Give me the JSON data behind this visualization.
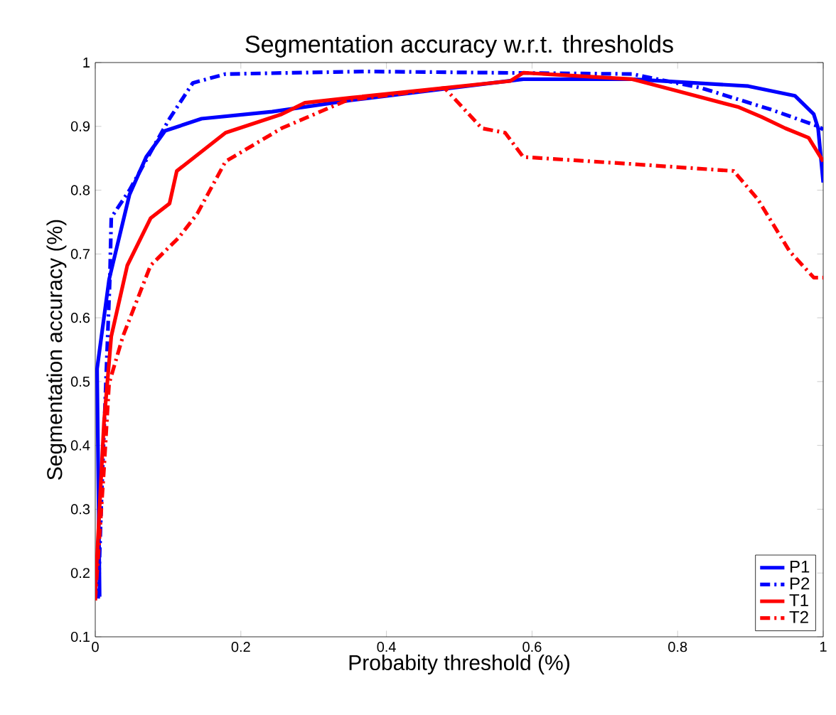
{
  "chart_data": {
    "type": "line",
    "title": "Segmentation accuracy w.r.t. thresholds",
    "xlabel": "Probabity threshold (%)",
    "ylabel": "Segmentation accuracy (%)",
    "xlim": [
      0,
      1
    ],
    "ylim": [
      0.1,
      1
    ],
    "xticks": [
      0,
      0.2,
      0.4,
      0.6,
      0.8,
      1
    ],
    "yticks": [
      0.1,
      0.2,
      0.3,
      0.4,
      0.5,
      0.6,
      0.7,
      0.8,
      0.9,
      1
    ],
    "legend": "bottom right",
    "grid": false,
    "marker": "none",
    "series": [
      {
        "name": "P1",
        "color": "#0000ff",
        "line_style": "solid",
        "x": [
          0.006,
          0.0025,
          0.019,
          0.047,
          0.07,
          0.096,
          0.146,
          0.243,
          0.352,
          0.588,
          0.737,
          0.897,
          0.961,
          0.987,
          0.993,
          1.0
        ],
        "values": [
          0.163,
          0.52,
          0.66,
          0.793,
          0.852,
          0.893,
          0.912,
          0.923,
          0.941,
          0.974,
          0.974,
          0.963,
          0.948,
          0.919,
          0.897,
          0.812
        ]
      },
      {
        "name": "P2",
        "color": "#0000ff",
        "line_style": "dashed",
        "x": [
          0.004,
          0.009,
          0.02,
          0.022,
          0.047,
          0.083,
          0.102,
          0.134,
          0.179,
          0.371,
          0.737,
          0.833,
          0.929,
          0.993,
          1.0
        ],
        "values": [
          0.16,
          0.33,
          0.66,
          0.757,
          0.8,
          0.874,
          0.912,
          0.968,
          0.982,
          0.986,
          0.982,
          0.96,
          0.926,
          0.9,
          0.895
        ]
      },
      {
        "name": "T1",
        "color": "#ff0000",
        "line_style": "solid",
        "x": [
          0,
          0.012,
          0.022,
          0.044,
          0.076,
          0.102,
          0.112,
          0.179,
          0.256,
          0.288,
          0.352,
          0.57,
          0.588,
          0.737,
          0.794,
          0.884,
          0.915,
          0.948,
          0.98,
          1.0
        ],
        "values": [
          0.171,
          0.437,
          0.571,
          0.682,
          0.756,
          0.779,
          0.83,
          0.89,
          0.919,
          0.937,
          0.945,
          0.971,
          0.984,
          0.974,
          0.957,
          0.93,
          0.915,
          0.897,
          0.882,
          0.845
        ]
      },
      {
        "name": "T2",
        "color": "#ff0000",
        "line_style": "dashed",
        "x": [
          0,
          0.012,
          0.019,
          0.038,
          0.076,
          0.115,
          0.14,
          0.179,
          0.256,
          0.346,
          0.48,
          0.531,
          0.563,
          0.588,
          0.737,
          0.877,
          0.91,
          0.954,
          0.987,
          1.0
        ],
        "values": [
          0.157,
          0.363,
          0.497,
          0.571,
          0.682,
          0.726,
          0.763,
          0.845,
          0.897,
          0.941,
          0.96,
          0.897,
          0.89,
          0.852,
          0.841,
          0.83,
          0.786,
          0.704,
          0.663,
          0.663
        ]
      }
    ]
  }
}
